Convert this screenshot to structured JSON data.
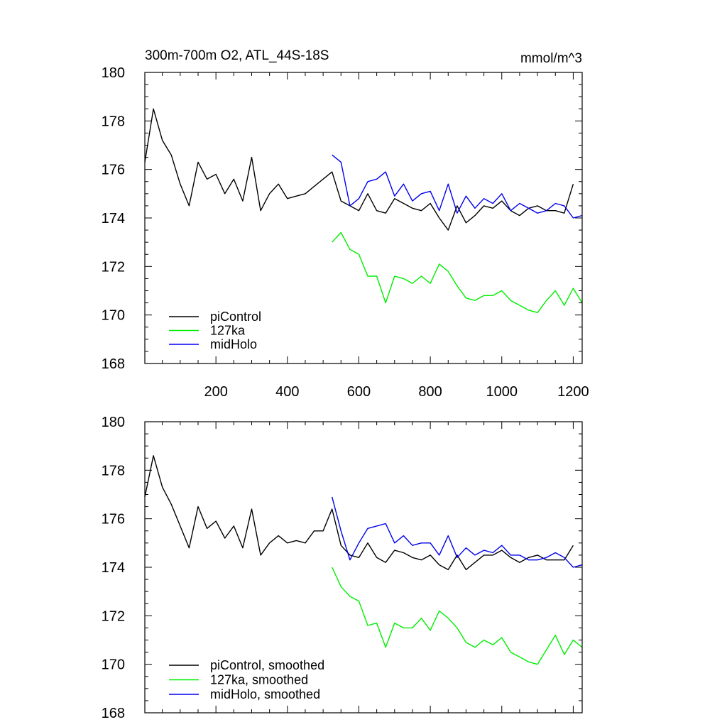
{
  "chart_data": [
    {
      "type": "line",
      "title": "300m-700m O2, ATL_44S-18S",
      "units_label": "mmol/m^3",
      "xlabel": "",
      "ylabel": "",
      "xlim": [
        1,
        1225
      ],
      "ylim": [
        168,
        180
      ],
      "xticks": [
        200,
        400,
        600,
        800,
        1000,
        1200
      ],
      "yticks": [
        168,
        170,
        172,
        174,
        176,
        178,
        180
      ],
      "xtick_labels": [
        "200",
        "400",
        "600",
        "800",
        "1000",
        "1200"
      ],
      "ytick_labels": [
        "168",
        "170",
        "172",
        "174",
        "176",
        "178",
        "180"
      ],
      "legend_position": "bottom-left",
      "series": [
        {
          "name": "piControl",
          "color": "#000000",
          "x": [
            1,
            25,
            50,
            75,
            100,
            125,
            150,
            175,
            200,
            225,
            250,
            275,
            300,
            325,
            350,
            375,
            400,
            425,
            450,
            475,
            500,
            525,
            550,
            575,
            600,
            625,
            650,
            675,
            700,
            725,
            750,
            775,
            800,
            825,
            850,
            875,
            900,
            925,
            950,
            975,
            1000,
            1025,
            1050,
            1075,
            1100,
            1125,
            1150,
            1175,
            1200
          ],
          "values": [
            176.3,
            178.5,
            177.2,
            176.6,
            175.4,
            174.5,
            176.3,
            175.6,
            175.8,
            175.0,
            175.6,
            174.7,
            176.5,
            174.3,
            175.0,
            175.4,
            174.8,
            174.9,
            175.0,
            175.3,
            175.6,
            175.9,
            174.7,
            174.5,
            174.3,
            175.0,
            174.3,
            174.2,
            174.8,
            174.6,
            174.4,
            174.3,
            174.6,
            174.0,
            173.5,
            174.5,
            173.8,
            174.1,
            174.5,
            174.4,
            174.7,
            174.3,
            174.1,
            174.4,
            174.5,
            174.3,
            174.3,
            174.2,
            175.4
          ]
        },
        {
          "name": "127ka",
          "color": "#00ee00",
          "x": [
            525,
            550,
            575,
            600,
            625,
            650,
            675,
            700,
            725,
            750,
            775,
            800,
            825,
            850,
            875,
            900,
            925,
            950,
            975,
            1000,
            1025,
            1050,
            1075,
            1100,
            1125,
            1150,
            1175,
            1200,
            1225
          ],
          "values": [
            173.0,
            173.4,
            172.7,
            172.5,
            171.6,
            171.6,
            170.5,
            171.6,
            171.5,
            171.3,
            171.6,
            171.3,
            172.1,
            171.8,
            171.2,
            170.7,
            170.6,
            170.8,
            170.8,
            171.0,
            170.6,
            170.4,
            170.2,
            170.1,
            170.6,
            171.0,
            170.4,
            171.1,
            170.5
          ]
        },
        {
          "name": "midHolo",
          "color": "#0000ee",
          "x": [
            525,
            550,
            575,
            600,
            625,
            650,
            675,
            700,
            725,
            750,
            775,
            800,
            825,
            850,
            875,
            900,
            925,
            950,
            975,
            1000,
            1025,
            1050,
            1075,
            1100,
            1125,
            1150,
            1175,
            1200,
            1225
          ],
          "values": [
            176.6,
            176.3,
            174.5,
            174.8,
            175.5,
            175.6,
            175.9,
            174.9,
            175.4,
            174.7,
            175.0,
            175.1,
            174.3,
            175.4,
            174.2,
            174.9,
            174.4,
            174.8,
            174.6,
            175.0,
            174.3,
            174.6,
            174.4,
            174.2,
            174.3,
            174.6,
            174.5,
            174.0,
            174.1
          ]
        }
      ]
    },
    {
      "type": "line",
      "title": "",
      "xlabel": "",
      "ylabel": "",
      "xlim": [
        1,
        1225
      ],
      "ylim": [
        168,
        180
      ],
      "xticks": [
        200,
        400,
        600,
        800,
        1000,
        1200
      ],
      "yticks": [
        168,
        170,
        172,
        174,
        176,
        178,
        180
      ],
      "ytick_labels": [
        "168",
        "170",
        "172",
        "174",
        "176",
        "178",
        "180"
      ],
      "legend_position": "bottom-left",
      "series": [
        {
          "name": "piControl, smoothed",
          "color": "#000000",
          "x": [
            1,
            25,
            50,
            75,
            100,
            125,
            150,
            175,
            200,
            225,
            250,
            275,
            300,
            325,
            350,
            375,
            400,
            425,
            450,
            475,
            500,
            525,
            550,
            575,
            600,
            625,
            650,
            675,
            700,
            725,
            750,
            775,
            800,
            825,
            850,
            875,
            900,
            925,
            950,
            975,
            1000,
            1025,
            1050,
            1075,
            1100,
            1125,
            1150,
            1175,
            1200
          ],
          "values": [
            176.9,
            178.6,
            177.3,
            176.6,
            175.7,
            174.8,
            176.5,
            175.6,
            175.9,
            175.2,
            175.7,
            174.8,
            176.4,
            174.5,
            175.0,
            175.3,
            175.0,
            175.1,
            175.0,
            175.5,
            175.5,
            176.4,
            174.9,
            174.5,
            174.4,
            175.0,
            174.4,
            174.2,
            174.7,
            174.6,
            174.4,
            174.3,
            174.5,
            174.1,
            173.9,
            174.5,
            173.9,
            174.2,
            174.5,
            174.5,
            174.7,
            174.4,
            174.2,
            174.4,
            174.5,
            174.3,
            174.3,
            174.3,
            174.9
          ]
        },
        {
          "name": "127ka, smoothed",
          "color": "#00ee00",
          "x": [
            525,
            550,
            575,
            600,
            625,
            650,
            675,
            700,
            725,
            750,
            775,
            800,
            825,
            850,
            875,
            900,
            925,
            950,
            975,
            1000,
            1025,
            1050,
            1075,
            1100,
            1125,
            1150,
            1175,
            1200,
            1225
          ],
          "values": [
            174.0,
            173.2,
            172.8,
            172.6,
            171.6,
            171.7,
            170.7,
            171.7,
            171.5,
            171.5,
            171.9,
            171.4,
            172.2,
            171.9,
            171.5,
            170.9,
            170.7,
            171.0,
            170.8,
            171.1,
            170.5,
            170.3,
            170.1,
            170.0,
            170.6,
            171.2,
            170.4,
            171.0,
            170.7
          ]
        },
        {
          "name": "midHolo, smoothed",
          "color": "#0000ee",
          "x": [
            525,
            550,
            575,
            600,
            625,
            650,
            675,
            700,
            725,
            750,
            775,
            800,
            825,
            850,
            875,
            900,
            925,
            950,
            975,
            1000,
            1025,
            1050,
            1075,
            1100,
            1125,
            1150,
            1175,
            1200,
            1225
          ],
          "values": [
            176.9,
            175.5,
            174.3,
            175.0,
            175.6,
            175.7,
            175.8,
            175.0,
            175.3,
            174.9,
            175.0,
            175.0,
            174.5,
            175.3,
            174.4,
            174.8,
            174.5,
            174.7,
            174.6,
            174.9,
            174.5,
            174.5,
            174.3,
            174.3,
            174.4,
            174.6,
            174.4,
            174.0,
            174.1
          ]
        }
      ]
    }
  ]
}
